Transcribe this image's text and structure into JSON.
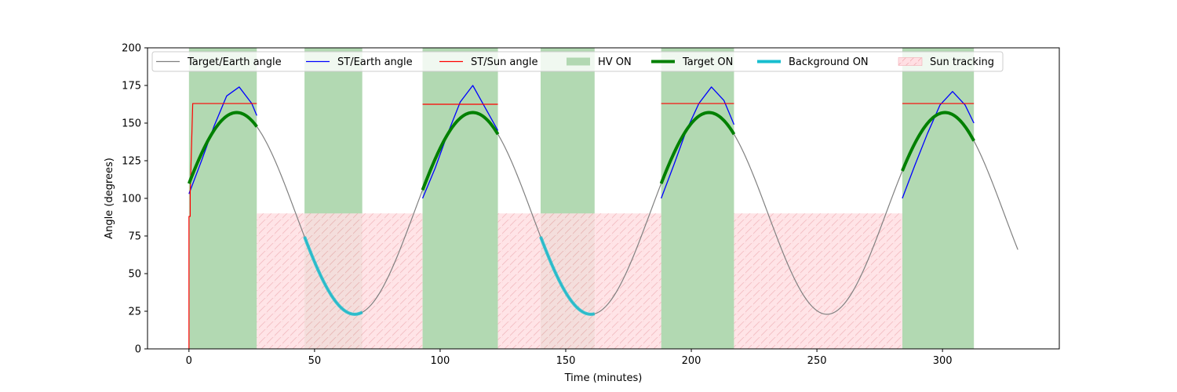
{
  "chart_data": {
    "type": "line",
    "title": "",
    "xlabel": "Time (minutes)",
    "ylabel": "Angle (degrees)",
    "xlim": [
      -16.5,
      346.5
    ],
    "ylim": [
      0,
      200
    ],
    "xticks": [
      0,
      50,
      100,
      150,
      200,
      250,
      300
    ],
    "yticks": [
      0,
      25,
      50,
      75,
      100,
      125,
      150,
      175,
      200
    ],
    "grid": false,
    "legend_placement": "top-left",
    "legend": [
      {
        "label": "Target/Earth angle",
        "kind": "line",
        "color": "#808080"
      },
      {
        "label": "ST/Earth angle",
        "kind": "line",
        "color": "#0000ff"
      },
      {
        "label": "ST/Sun angle",
        "kind": "line",
        "color": "#ff0000"
      },
      {
        "label": "HV ON",
        "kind": "patch",
        "color": "#b2d8b2"
      },
      {
        "label": "Target ON",
        "kind": "thick-line",
        "color": "#008000"
      },
      {
        "label": "Background ON",
        "kind": "thick-line",
        "color": "#17becf"
      },
      {
        "label": "Sun tracking",
        "kind": "hatch",
        "color": "#ffdfe3"
      }
    ],
    "hv_on_intervals": [
      [
        0,
        27
      ],
      [
        46,
        69
      ],
      [
        93,
        123
      ],
      [
        140,
        161.5
      ],
      [
        188,
        217
      ],
      [
        284,
        312.5
      ]
    ],
    "sun_tracking": {
      "y_top": 90,
      "intervals": [
        [
          27,
          93
        ],
        [
          123,
          188
        ],
        [
          217,
          284
        ]
      ]
    },
    "target_earth_angle": {
      "model": "mean - amplitude*cos(2*pi*(t - t_min)/period)",
      "mean": 90,
      "amplitude": 67,
      "period": 94,
      "t_min": 66,
      "t_start": 0,
      "t_end": 330
    },
    "target_on_intervals": [
      [
        0,
        27
      ],
      [
        93,
        123
      ],
      [
        188,
        217
      ],
      [
        284,
        312.5
      ]
    ],
    "background_on_intervals": [
      [
        46,
        69
      ],
      [
        140,
        161.5
      ]
    ],
    "st_earth_segments": [
      {
        "x": [
          0,
          5,
          10,
          15,
          20,
          25,
          27
        ],
        "y": [
          103,
          125,
          148,
          168,
          174,
          163,
          155
        ]
      },
      {
        "x": [
          93,
          98,
          103,
          108,
          113,
          118,
          123
        ],
        "y": [
          100,
          120,
          143,
          164,
          175,
          160,
          145
        ]
      },
      {
        "x": [
          188,
          193,
          198,
          203,
          208,
          213,
          217
        ],
        "y": [
          100,
          122,
          145,
          163,
          174,
          165,
          149
        ]
      },
      {
        "x": [
          284,
          289,
          294,
          299,
          304,
          309,
          312.5
        ],
        "y": [
          100,
          122,
          143,
          162,
          171,
          162,
          150
        ]
      }
    ],
    "st_sun_segments": [
      {
        "x": [
          0,
          0,
          0.5,
          0.5,
          1.5,
          27
        ],
        "y": [
          0,
          88,
          88,
          104,
          163,
          163
        ]
      },
      {
        "x": [
          93,
          123
        ],
        "y": [
          162.5,
          162.5
        ]
      },
      {
        "x": [
          188,
          217
        ],
        "y": [
          163,
          163
        ]
      },
      {
        "x": [
          284,
          312.5
        ],
        "y": [
          163,
          163
        ]
      }
    ]
  }
}
